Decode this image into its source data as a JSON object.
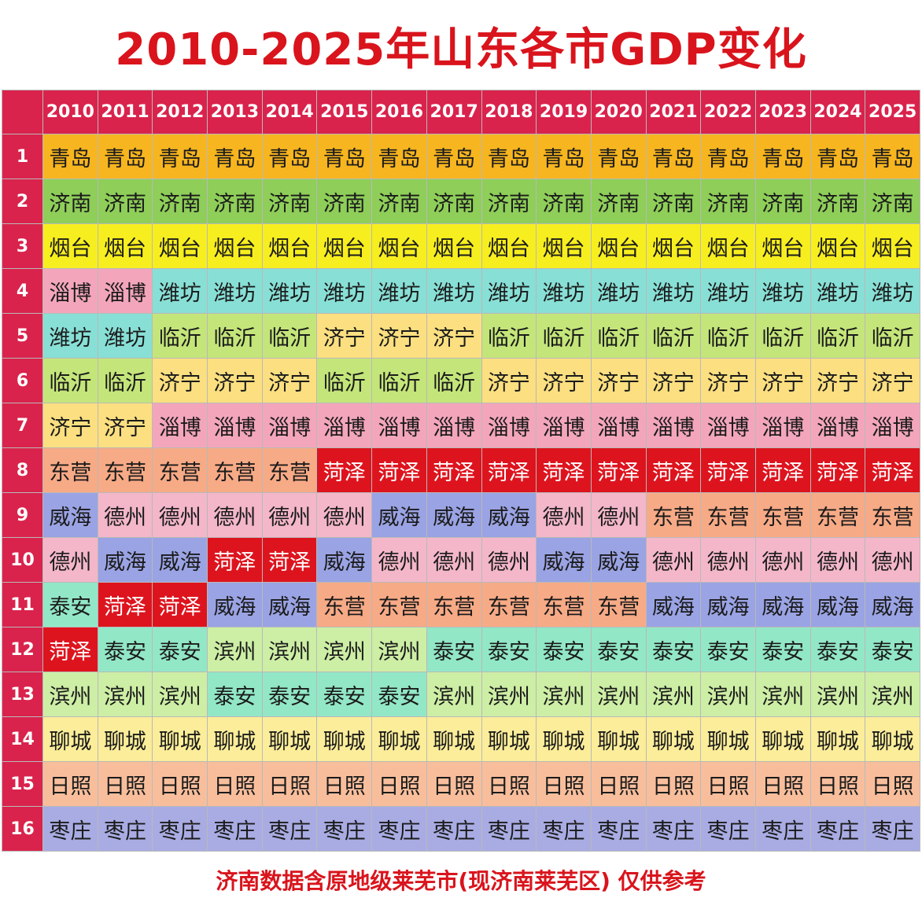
{
  "chart_data": {
    "type": "table",
    "title": "2010-2025年山东各市GDP变化",
    "years": [
      "2010",
      "2011",
      "2012",
      "2013",
      "2014",
      "2015",
      "2016",
      "2017",
      "2018",
      "2019",
      "2020",
      "2021",
      "2022",
      "2023",
      "2024",
      "2025"
    ],
    "ranks": [
      "1",
      "2",
      "3",
      "4",
      "5",
      "6",
      "7",
      "8",
      "9",
      "10",
      "11",
      "12",
      "13",
      "14",
      "15",
      "16"
    ],
    "rows": [
      [
        "青岛",
        "青岛",
        "青岛",
        "青岛",
        "青岛",
        "青岛",
        "青岛",
        "青岛",
        "青岛",
        "青岛",
        "青岛",
        "青岛",
        "青岛",
        "青岛",
        "青岛",
        "青岛"
      ],
      [
        "济南",
        "济南",
        "济南",
        "济南",
        "济南",
        "济南",
        "济南",
        "济南",
        "济南",
        "济南",
        "济南",
        "济南",
        "济南",
        "济南",
        "济南",
        "济南"
      ],
      [
        "烟台",
        "烟台",
        "烟台",
        "烟台",
        "烟台",
        "烟台",
        "烟台",
        "烟台",
        "烟台",
        "烟台",
        "烟台",
        "烟台",
        "烟台",
        "烟台",
        "烟台",
        "烟台"
      ],
      [
        "淄博",
        "淄博",
        "潍坊",
        "潍坊",
        "潍坊",
        "潍坊",
        "潍坊",
        "潍坊",
        "潍坊",
        "潍坊",
        "潍坊",
        "潍坊",
        "潍坊",
        "潍坊",
        "潍坊",
        "潍坊"
      ],
      [
        "潍坊",
        "潍坊",
        "临沂",
        "临沂",
        "临沂",
        "济宁",
        "济宁",
        "济宁",
        "临沂",
        "临沂",
        "临沂",
        "临沂",
        "临沂",
        "临沂",
        "临沂",
        "临沂"
      ],
      [
        "临沂",
        "临沂",
        "济宁",
        "济宁",
        "济宁",
        "临沂",
        "临沂",
        "临沂",
        "济宁",
        "济宁",
        "济宁",
        "济宁",
        "济宁",
        "济宁",
        "济宁",
        "济宁"
      ],
      [
        "济宁",
        "济宁",
        "淄博",
        "淄博",
        "淄博",
        "淄博",
        "淄博",
        "淄博",
        "淄博",
        "淄博",
        "淄博",
        "淄博",
        "淄博",
        "淄博",
        "淄博",
        "淄博"
      ],
      [
        "东营",
        "东营",
        "东营",
        "东营",
        "东营",
        "菏泽",
        "菏泽",
        "菏泽",
        "菏泽",
        "菏泽",
        "菏泽",
        "菏泽",
        "菏泽",
        "菏泽",
        "菏泽",
        "菏泽"
      ],
      [
        "威海",
        "德州",
        "德州",
        "德州",
        "德州",
        "德州",
        "威海",
        "威海",
        "威海",
        "德州",
        "德州",
        "东营",
        "东营",
        "东营",
        "东营",
        "东营"
      ],
      [
        "德州",
        "威海",
        "威海",
        "菏泽",
        "菏泽",
        "威海",
        "德州",
        "德州",
        "德州",
        "威海",
        "威海",
        "德州",
        "德州",
        "德州",
        "德州",
        "德州"
      ],
      [
        "泰安",
        "菏泽",
        "菏泽",
        "威海",
        "威海",
        "东营",
        "东营",
        "东营",
        "东营",
        "东营",
        "东营",
        "威海",
        "威海",
        "威海",
        "威海",
        "威海"
      ],
      [
        "菏泽",
        "泰安",
        "泰安",
        "滨州",
        "滨州",
        "滨州",
        "滨州",
        "泰安",
        "泰安",
        "泰安",
        "泰安",
        "泰安",
        "泰安",
        "泰安",
        "泰安",
        "泰安"
      ],
      [
        "滨州",
        "滨州",
        "滨州",
        "泰安",
        "泰安",
        "泰安",
        "泰安",
        "滨州",
        "滨州",
        "滨州",
        "滨州",
        "滨州",
        "滨州",
        "滨州",
        "滨州",
        "滨州"
      ],
      [
        "聊城",
        "聊城",
        "聊城",
        "聊城",
        "聊城",
        "聊城",
        "聊城",
        "聊城",
        "聊城",
        "聊城",
        "聊城",
        "聊城",
        "聊城",
        "聊城",
        "聊城",
        "聊城"
      ],
      [
        "日照",
        "日照",
        "日照",
        "日照",
        "日照",
        "日照",
        "日照",
        "日照",
        "日照",
        "日照",
        "日照",
        "日照",
        "日照",
        "日照",
        "日照",
        "日照"
      ],
      [
        "枣庄",
        "枣庄",
        "枣庄",
        "枣庄",
        "枣庄",
        "枣庄",
        "枣庄",
        "枣庄",
        "枣庄",
        "枣庄",
        "枣庄",
        "枣庄",
        "枣庄",
        "枣庄",
        "枣庄",
        "枣庄"
      ]
    ],
    "city_colors": {
      "青岛": "#f7b51f",
      "济南": "#8ece59",
      "烟台": "#f7ee1f",
      "潍坊": "#88dfd6",
      "临沂": "#c4e57a",
      "济宁": "#fbdf80",
      "淄博": "#f3a6bb",
      "东营": "#f7aa86",
      "菏泽": "#dd141e",
      "威海": "#9aa3e3",
      "德州": "#f3b7c9",
      "泰安": "#92e7c6",
      "滨州": "#cdeea5",
      "聊城": "#fbed9a",
      "日照": "#f8be9c",
      "枣庄": "#a9ace3"
    },
    "header_color": "#d9234c",
    "title_color": "#d9141c"
  },
  "footnote": "济南数据含原地级莱芜市(现济南莱芜区) 仅供参考"
}
